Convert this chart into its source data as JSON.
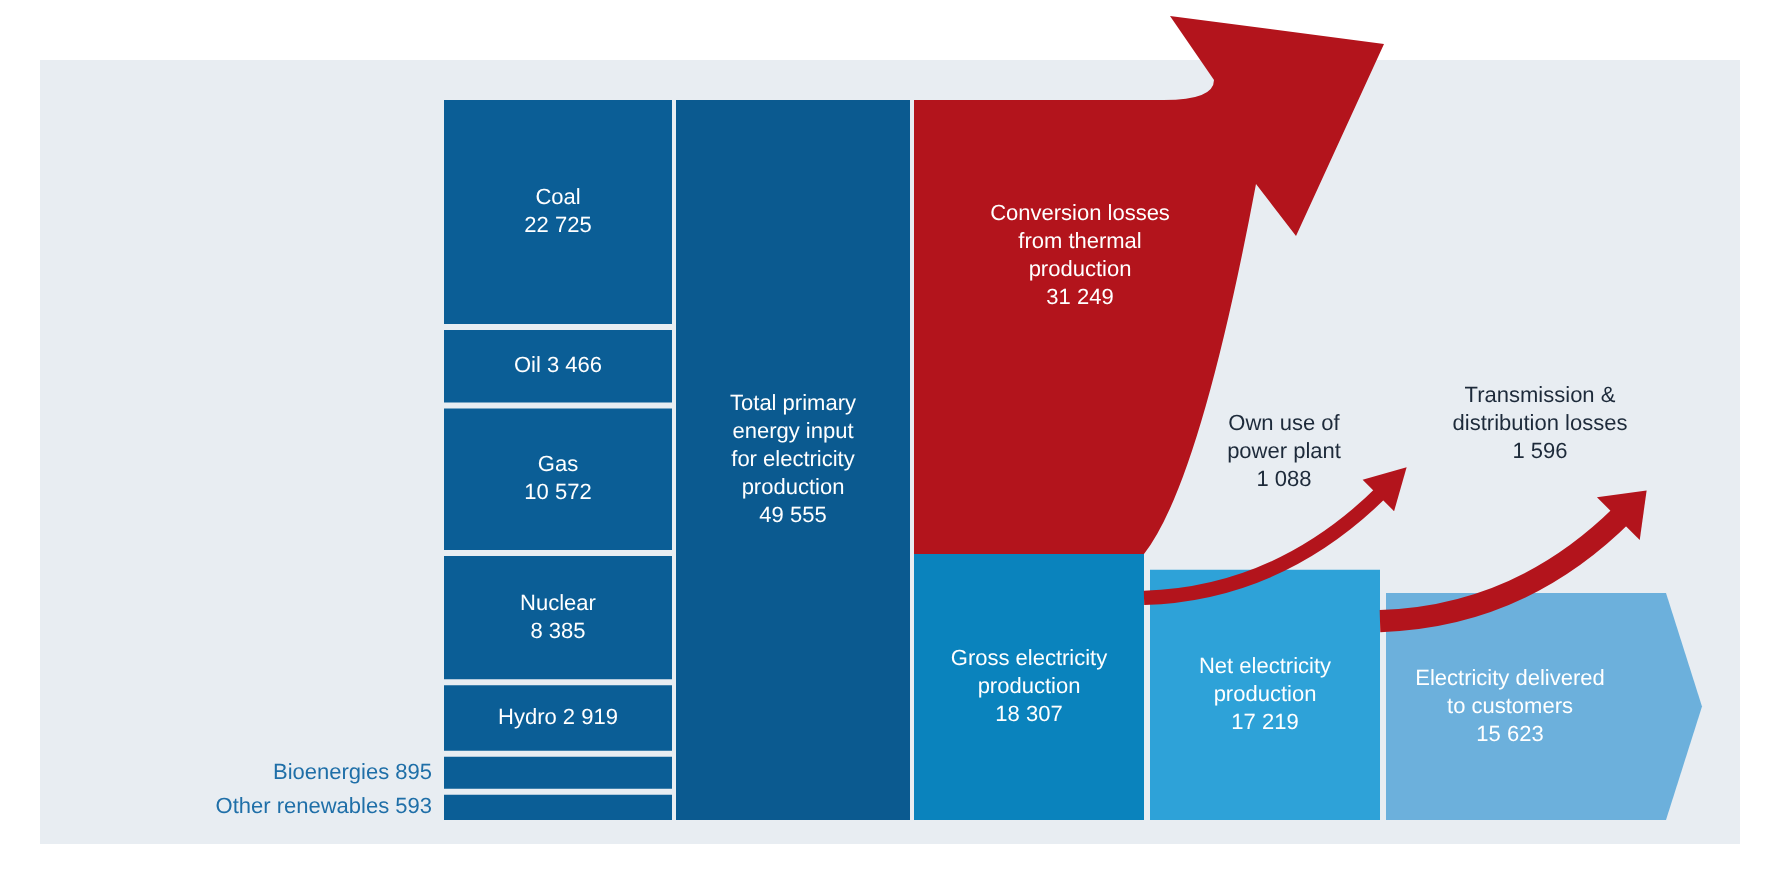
{
  "chart_data": {
    "type": "other",
    "categories": [
      "Coal",
      "Oil",
      "Gas",
      "Nuclear",
      "Hydro",
      "Bioenergies",
      "Other renewables",
      "Total primary energy input for electricity production",
      "Conversion losses from thermal production",
      "Gross electricity production",
      "Own use of power plant",
      "Net electricity production",
      "Transmission & distribution losses",
      "Electricity delivered to customers"
    ],
    "values": [
      22725,
      3466,
      10572,
      8385,
      2919,
      895,
      593,
      49555,
      31249,
      18307,
      1088,
      17219,
      1596,
      15623
    ],
    "value_labels": [
      "22 725",
      "3 466",
      "10 572",
      "8 385",
      "2 919",
      "895",
      "593",
      "49 555",
      "31 249",
      "18 307",
      "1 088",
      "17 219",
      "1 596",
      "15 623"
    ],
    "colors": [
      "#0b5e96",
      "#0b5e96",
      "#0b5e96",
      "#0b5e96",
      "#0b5e96",
      "#0b5e96",
      "#0b5e96",
      "#0b5a90",
      "#b3141c",
      "#0a83bd",
      "#b3141c",
      "#2ea2d8",
      "#b3141c",
      "#6cb0dc"
    ]
  }
}
